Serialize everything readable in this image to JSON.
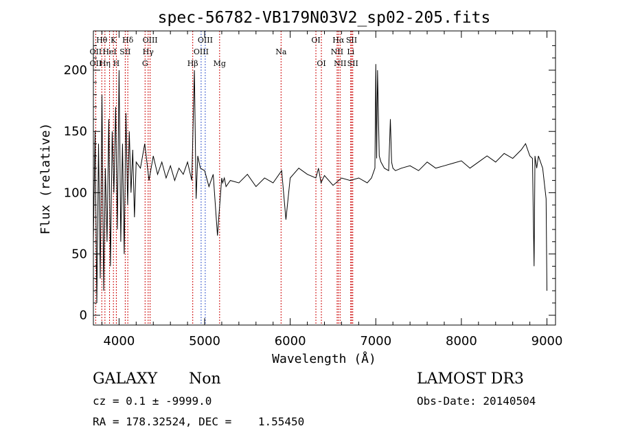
{
  "chart_data": {
    "type": "line",
    "title": "spec-56782-VB179N03V2_sp02-205.fits",
    "xlabel": "Wavelength (Å)",
    "ylabel": "Flux (relative)",
    "xlim": [
      3700,
      9100
    ],
    "ylim": [
      -8,
      232
    ],
    "x_ticks": [
      4000,
      5000,
      6000,
      7000,
      8000,
      9000
    ],
    "y_ticks": [
      0,
      50,
      100,
      150,
      200
    ],
    "grid": false,
    "spectrum_color": "#000000",
    "line_markers": [
      {
        "label": "Hθ",
        "wavelength": 3798,
        "row": 0
      },
      {
        "label": "OII",
        "wavelength": 3727,
        "row": 1
      },
      {
        "label": "OII",
        "wavelength": 3727,
        "row": 2
      },
      {
        "label": "Hη",
        "wavelength": 3835,
        "row": 2
      },
      {
        "label": "HeI",
        "wavelength": 3889,
        "row": 1
      },
      {
        "label": "K",
        "wavelength": 3934,
        "row": 0
      },
      {
        "label": "H",
        "wavelength": 3968,
        "row": 2
      },
      {
        "label": "Hδ",
        "wavelength": 4102,
        "row": 0
      },
      {
        "label": "SII",
        "wavelength": 4072,
        "row": 1
      },
      {
        "label": "OIII",
        "wavelength": 4363,
        "row": 0
      },
      {
        "label": "Hγ",
        "wavelength": 4340,
        "row": 1
      },
      {
        "label": "G",
        "wavelength": 4304,
        "row": 2
      },
      {
        "label": "OIII",
        "wavelength": 5007,
        "row": 0
      },
      {
        "label": "OIII",
        "wavelength": 4959,
        "row": 1
      },
      {
        "label": "Hβ",
        "wavelength": 4861,
        "row": 2
      },
      {
        "label": "Mg",
        "wavelength": 5175,
        "row": 2
      },
      {
        "label": "Na",
        "wavelength": 5893,
        "row": 1
      },
      {
        "label": "OI",
        "wavelength": 6300,
        "row": 0
      },
      {
        "label": "OI",
        "wavelength": 6364,
        "row": 2
      },
      {
        "label": "Hα",
        "wavelength": 6563,
        "row": 0
      },
      {
        "label": "NII",
        "wavelength": 6548,
        "row": 1
      },
      {
        "label": "NII",
        "wavelength": 6583,
        "row": 2
      },
      {
        "label": "SII",
        "wavelength": 6717,
        "row": 0
      },
      {
        "label": "Li",
        "wavelength": 6707,
        "row": 1
      },
      {
        "label": "SII",
        "wavelength": 6731,
        "row": 2
      }
    ],
    "marker_lines": [
      {
        "wavelength": 3727,
        "color": "#cc0000"
      },
      {
        "wavelength": 3798,
        "color": "#cc0000"
      },
      {
        "wavelength": 3835,
        "color": "#cc0000"
      },
      {
        "wavelength": 3889,
        "color": "#cc0000"
      },
      {
        "wavelength": 3934,
        "color": "#cc0000"
      },
      {
        "wavelength": 3968,
        "color": "#cc0000"
      },
      {
        "wavelength": 4072,
        "color": "#cc0000"
      },
      {
        "wavelength": 4102,
        "color": "#cc0000"
      },
      {
        "wavelength": 4304,
        "color": "#cc0000"
      },
      {
        "wavelength": 4340,
        "color": "#cc0000"
      },
      {
        "wavelength": 4363,
        "color": "#cc0000"
      },
      {
        "wavelength": 4861,
        "color": "#cc0000"
      },
      {
        "wavelength": 4959,
        "color": "#3355cc"
      },
      {
        "wavelength": 5007,
        "color": "#3355cc"
      },
      {
        "wavelength": 5175,
        "color": "#cc0000"
      },
      {
        "wavelength": 5893,
        "color": "#cc0000"
      },
      {
        "wavelength": 6300,
        "color": "#cc0000"
      },
      {
        "wavelength": 6364,
        "color": "#cc0000"
      },
      {
        "wavelength": 6548,
        "color": "#cc0000"
      },
      {
        "wavelength": 6563,
        "color": "#cc0000"
      },
      {
        "wavelength": 6583,
        "color": "#cc0000"
      },
      {
        "wavelength": 6707,
        "color": "#cc0000"
      },
      {
        "wavelength": 6717,
        "color": "#cc0000"
      },
      {
        "wavelength": 6731,
        "color": "#cc0000"
      }
    ],
    "series": [
      {
        "name": "flux",
        "x": [
          3700,
          3720,
          3740,
          3760,
          3780,
          3800,
          3820,
          3840,
          3860,
          3880,
          3900,
          3920,
          3940,
          3960,
          3980,
          4000,
          4020,
          4040,
          4060,
          4080,
          4100,
          4120,
          4140,
          4160,
          4180,
          4200,
          4250,
          4300,
          4350,
          4400,
          4450,
          4500,
          4550,
          4600,
          4650,
          4700,
          4750,
          4800,
          4850,
          4880,
          4900,
          4920,
          4950,
          5000,
          5050,
          5100,
          5150,
          5200,
          5210,
          5230,
          5250,
          5300,
          5400,
          5500,
          5600,
          5700,
          5800,
          5900,
          5950,
          6000,
          6100,
          6200,
          6300,
          6330,
          6360,
          6400,
          6500,
          6600,
          6700,
          6800,
          6900,
          6950,
          6990,
          7000,
          7010,
          7020,
          7040,
          7060,
          7100,
          7150,
          7170,
          7185,
          7200,
          7230,
          7300,
          7400,
          7500,
          7600,
          7700,
          7800,
          7900,
          8000,
          8100,
          8200,
          8300,
          8400,
          8500,
          8600,
          8700,
          8750,
          8800,
          8830,
          8850,
          8860,
          8870,
          8880,
          8900,
          8950,
          8990,
          9000
        ],
        "values": [
          60,
          150,
          10,
          140,
          30,
          180,
          20,
          120,
          60,
          160,
          40,
          150,
          100,
          170,
          70,
          200,
          60,
          140,
          50,
          165,
          90,
          150,
          100,
          135,
          80,
          125,
          120,
          140,
          110,
          130,
          115,
          125,
          112,
          122,
          110,
          120,
          115,
          125,
          110,
          200,
          95,
          130,
          120,
          118,
          105,
          115,
          65,
          112,
          108,
          112,
          105,
          110,
          108,
          115,
          105,
          112,
          108,
          118,
          78,
          112,
          120,
          115,
          112,
          120,
          108,
          114,
          106,
          112,
          110,
          112,
          108,
          112,
          120,
          205,
          128,
          200,
          130,
          125,
          120,
          118,
          160,
          125,
          120,
          118,
          120,
          122,
          118,
          125,
          120,
          122,
          124,
          126,
          120,
          125,
          130,
          125,
          132,
          128,
          135,
          140,
          130,
          128,
          40,
          130,
          125,
          120,
          130,
          120,
          95,
          20
        ]
      }
    ]
  },
  "info": {
    "object_class": "GALAXY",
    "subclass": "Non",
    "survey": "LAMOST DR3",
    "redshift": "cz = 0.1 ± -9999.0",
    "obs_date": "Obs-Date: 20140504",
    "coords": "RA = 178.32524, DEC =    1.55450"
  }
}
